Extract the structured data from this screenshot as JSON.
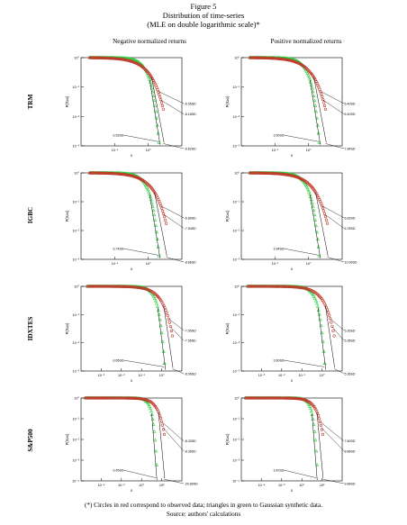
{
  "figure": {
    "title": "Figure 5",
    "subtitle": "Distribution of time-series",
    "subtitle2": "(MLE on double logarithmic scale)*",
    "footnote": "(*) Circles in red correspond to observed data; triangles in green to Gaussian synthetic data.",
    "source": "Source: authors' calculations"
  },
  "columns": [
    "Negative normalized returns",
    "Positive normalized returns"
  ],
  "rows": [
    "TRM",
    "IGBC",
    "IDXTES",
    "S&P500"
  ],
  "colors": {
    "observed": "#c0392b",
    "gaussian": "#2ecc40",
    "fit": "#000000"
  },
  "chart_data": [
    {
      "type": "scatter",
      "row": "TRM",
      "column": "Negative normalized returns",
      "xscale": "log",
      "yscale": "log",
      "xlabel": "x",
      "ylabel": "P(X≥x)",
      "xlim": [
        0.01,
        10
      ],
      "ylim": [
        0.001,
        1
      ],
      "xticks": [
        "10⁻¹",
        "10⁰"
      ],
      "yticks": [
        "10⁻³",
        "10⁻²",
        "10⁻¹",
        "10⁰"
      ],
      "tail_x": 2.8,
      "gauss_tail_x": 2.2,
      "annotations": [
        "-6.55SD",
        "-6.18SD",
        "-3.53SD",
        "-6.62SD"
      ],
      "series": [
        {
          "marker": "circle"
        },
        {
          "marker": "triangle"
        }
      ]
    },
    {
      "type": "scatter",
      "row": "TRM",
      "column": "Positive normalized returns",
      "xscale": "log",
      "yscale": "log",
      "xlabel": "x",
      "ylabel": "P(X≥x)",
      "xlim": [
        0.01,
        10
      ],
      "ylim": [
        0.001,
        1
      ],
      "xticks": [
        "10⁻¹",
        "10⁰"
      ],
      "yticks": [
        "10⁻³",
        "10⁻²",
        "10⁻¹",
        "10⁰"
      ],
      "tail_x": 3.2,
      "gauss_tail_x": 2.2,
      "annotations": [
        "6.40SD",
        "6.40SD",
        "3.50SD",
        "7.84SD"
      ],
      "series": [
        {
          "marker": "circle"
        },
        {
          "marker": "triangle"
        }
      ]
    },
    {
      "type": "scatter",
      "row": "IGBC",
      "column": "Negative normalized returns",
      "xscale": "log",
      "yscale": "log",
      "xlabel": "x",
      "ylabel": "P(X≥x)",
      "xlim": [
        0.01,
        10
      ],
      "ylim": [
        0.001,
        1
      ],
      "xticks": [
        "10⁻¹",
        "10⁰"
      ],
      "yticks": [
        "10⁻³",
        "10⁻²",
        "10⁻¹",
        "10⁰"
      ],
      "tail_x": 3.4,
      "gauss_tail_x": 2.2,
      "annotations": [
        "-6.89SD",
        "-7.54SD",
        "-3.74SD",
        "-8.86SD"
      ],
      "series": [
        {
          "marker": "circle"
        },
        {
          "marker": "triangle"
        }
      ]
    },
    {
      "type": "scatter",
      "row": "IGBC",
      "column": "Positive normalized returns",
      "xscale": "log",
      "yscale": "log",
      "xlabel": "x",
      "ylabel": "P(X≥x)",
      "xlim": [
        0.01,
        10
      ],
      "ylim": [
        0.001,
        1
      ],
      "xticks": [
        "10⁻¹",
        "10⁰"
      ],
      "yticks": [
        "10⁻³",
        "10⁻²",
        "10⁻¹",
        "10⁰"
      ],
      "tail_x": 3.6,
      "gauss_tail_x": 2.2,
      "annotations": [
        "6.83SD",
        "6.78SD",
        "3.94SD",
        "10.99SD"
      ],
      "series": [
        {
          "marker": "circle"
        },
        {
          "marker": "triangle"
        }
      ]
    },
    {
      "type": "scatter",
      "row": "IDXTES",
      "column": "Negative normalized returns",
      "xscale": "log",
      "yscale": "log",
      "xlabel": "x",
      "ylabel": "P(X≥x)",
      "xlim": [
        0.001,
        10
      ],
      "ylim": [
        0.001,
        1
      ],
      "xticks": [
        "10⁻³",
        "10⁻²",
        "10⁻¹",
        "10⁰"
      ],
      "yticks": [
        "10⁻³",
        "10⁻²",
        "10⁻¹",
        "10⁰"
      ],
      "tail_x": 4.2,
      "gauss_tail_x": 2.2,
      "annotations": [
        "-7.55SD",
        "-7.55SD",
        "-3.65SD",
        "-6.06SD"
      ],
      "series": [
        {
          "marker": "circle"
        },
        {
          "marker": "triangle"
        }
      ]
    },
    {
      "type": "scatter",
      "row": "IDXTES",
      "column": "Positive normalized returns",
      "xscale": "log",
      "yscale": "log",
      "xlabel": "x",
      "ylabel": "P(X≥x)",
      "xlim": [
        0.001,
        10
      ],
      "ylim": [
        0.001,
        1
      ],
      "xticks": [
        "10⁻³",
        "10⁻²",
        "10⁻¹",
        "10⁰"
      ],
      "yticks": [
        "10⁻³",
        "10⁻²",
        "10⁻¹",
        "10⁰"
      ],
      "tail_x": 4.8,
      "gauss_tail_x": 2.2,
      "annotations": [
        "5.26SD",
        "5.36SD",
        "3.60SD",
        "5.36SD"
      ],
      "series": [
        {
          "marker": "circle"
        },
        {
          "marker": "triangle"
        }
      ]
    },
    {
      "type": "scatter",
      "row": "S&P500",
      "column": "Negative normalized returns",
      "xscale": "log",
      "yscale": "log",
      "xlabel": "x",
      "ylabel": "P(X≥x)",
      "xlim": [
        0.0001,
        100
      ],
      "ylim": [
        0.0001,
        1
      ],
      "xticks": [
        "10⁻⁴",
        "10⁻²",
        "10⁰",
        "10²"
      ],
      "yticks": [
        "10⁻⁴",
        "10⁻³",
        "10⁻²",
        "10⁻¹",
        "10⁰"
      ],
      "tail_x": 9,
      "gauss_tail_x": 3.2,
      "annotations": [
        "-8.33SD",
        "-8.36SD",
        "-3.45SD",
        "-20.89SD"
      ],
      "series": [
        {
          "marker": "circle"
        },
        {
          "marker": "triangle"
        }
      ]
    },
    {
      "type": "scatter",
      "row": "S&P500",
      "column": "Positive normalized returns",
      "xscale": "log",
      "yscale": "log",
      "xlabel": "x",
      "ylabel": "P(X≥x)",
      "xlim": [
        0.0001,
        100
      ],
      "ylim": [
        0.0001,
        1
      ],
      "xticks": [
        "10⁻⁴",
        "10⁻²",
        "10⁰",
        "10²"
      ],
      "yticks": [
        "10⁻⁴",
        "10⁻³",
        "10⁻²",
        "10⁻¹",
        "10⁰"
      ],
      "tail_x": 7,
      "gauss_tail_x": 3.2,
      "annotations": [
        "7.60SD",
        "8.86SD",
        "3.42SD",
        "9.86SD"
      ],
      "series": [
        {
          "marker": "circle"
        },
        {
          "marker": "triangle"
        }
      ]
    }
  ]
}
